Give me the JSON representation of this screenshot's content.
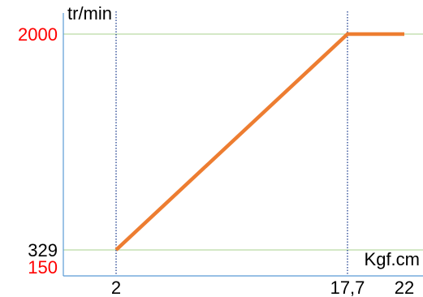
{
  "chart_data": {
    "type": "line",
    "ylabel": "tr/min",
    "xlabel": "Kgf.cm",
    "xlim": [
      0,
      22
    ],
    "ylim": [
      150,
      2000
    ],
    "x_ticks": [
      {
        "value": 2,
        "label": "2"
      },
      {
        "value": 17.7,
        "label": "17,7"
      },
      {
        "value": 22,
        "label": "22"
      }
    ],
    "y_ticks": [
      {
        "value": 2000,
        "label": "2000",
        "color": "#ff0000"
      },
      {
        "value": 329,
        "label": "329",
        "color": "#000000"
      },
      {
        "value": 150,
        "label": "150",
        "color": "#ff0000"
      }
    ],
    "series": [
      {
        "x": [
          2,
          17.7,
          22
        ],
        "y": [
          329,
          2000,
          2000
        ],
        "color": "#ed7d31"
      }
    ],
    "gridlines": {
      "horizontal": [
        2000,
        329
      ],
      "horizontal_color": "#a9d18e",
      "vertical": [
        2,
        17.7
      ],
      "vertical_color": "#1f3f8f"
    },
    "axis_color": "#5b9bd5"
  }
}
